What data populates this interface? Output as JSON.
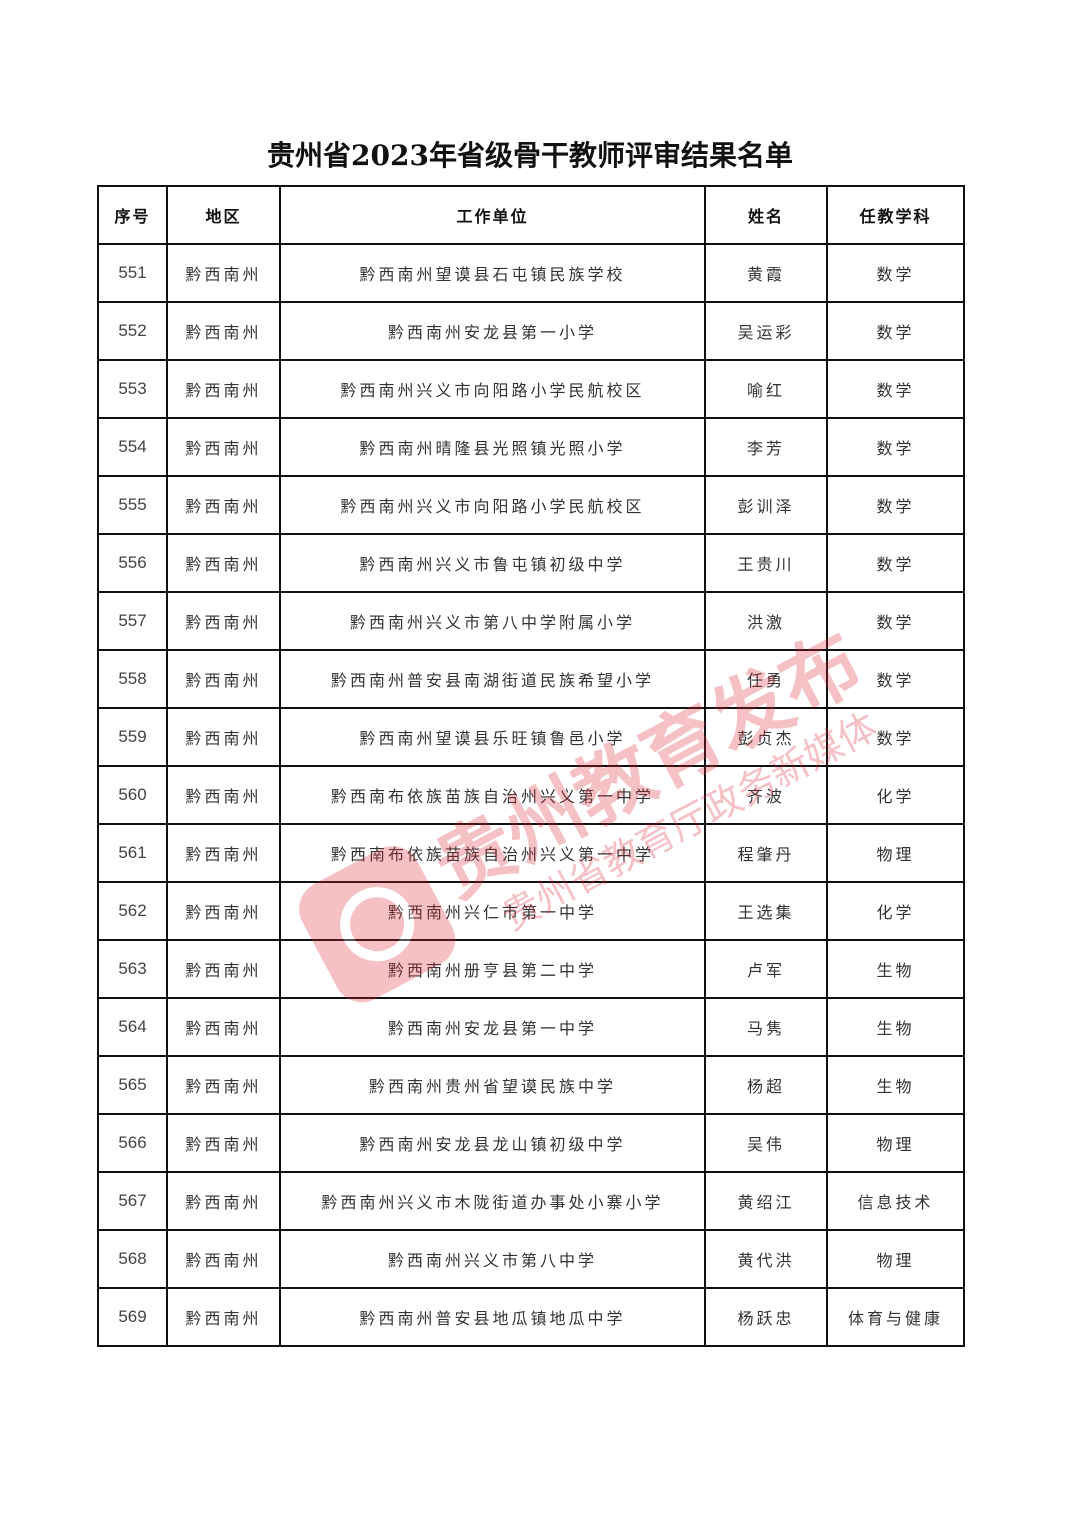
{
  "title": "贵州省2023年省级骨干教师评审结果名单",
  "columns": [
    "序号",
    "地区",
    "工作单位",
    "姓名",
    "任教学科"
  ],
  "rows": [
    [
      "551",
      "黔西南州",
      "黔西南州望谟县石屯镇民族学校",
      "黄霞",
      "数学"
    ],
    [
      "552",
      "黔西南州",
      "黔西南州安龙县第一小学",
      "吴运彩",
      "数学"
    ],
    [
      "553",
      "黔西南州",
      "黔西南州兴义市向阳路小学民航校区",
      "喻红",
      "数学"
    ],
    [
      "554",
      "黔西南州",
      "黔西南州晴隆县光照镇光照小学",
      "李芳",
      "数学"
    ],
    [
      "555",
      "黔西南州",
      "黔西南州兴义市向阳路小学民航校区",
      "彭训泽",
      "数学"
    ],
    [
      "556",
      "黔西南州",
      "黔西南州兴义市鲁屯镇初级中学",
      "王贵川",
      "数学"
    ],
    [
      "557",
      "黔西南州",
      "黔西南州兴义市第八中学附属小学",
      "洪激",
      "数学"
    ],
    [
      "558",
      "黔西南州",
      "黔西南州普安县南湖街道民族希望小学",
      "任勇",
      "数学"
    ],
    [
      "559",
      "黔西南州",
      "黔西南州望谟县乐旺镇鲁邑小学",
      "彭贞杰",
      "数学"
    ],
    [
      "560",
      "黔西南州",
      "黔西南布依族苗族自治州兴义第一中学",
      "齐波",
      "化学"
    ],
    [
      "561",
      "黔西南州",
      "黔西南布依族苗族自治州兴义第一中学",
      "程肇丹",
      "物理"
    ],
    [
      "562",
      "黔西南州",
      "黔西南州兴仁市第一中学",
      "王选集",
      "化学"
    ],
    [
      "563",
      "黔西南州",
      "黔西南州册亨县第二中学",
      "卢军",
      "生物"
    ],
    [
      "564",
      "黔西南州",
      "黔西南州安龙县第一中学",
      "马隽",
      "生物"
    ],
    [
      "565",
      "黔西南州",
      "黔西南州贵州省望谟民族中学",
      "杨超",
      "生物"
    ],
    [
      "566",
      "黔西南州",
      "黔西南州安龙县龙山镇初级中学",
      "吴伟",
      "物理"
    ],
    [
      "567",
      "黔西南州",
      "黔西南州兴义市木陇街道办事处小寨小学",
      "黄绍江",
      "信息技术"
    ],
    [
      "568",
      "黔西南州",
      "黔西南州兴义市第八中学",
      "黄代洪",
      "物理"
    ],
    [
      "569",
      "黔西南州",
      "黔西南州普安县地瓜镇地瓜中学",
      "杨跃忠",
      "体育与健康"
    ]
  ],
  "watermark": {
    "main": "贵州教育发布",
    "sub": "贵州省教育厅政务新媒体",
    "color": "#e0232f"
  }
}
